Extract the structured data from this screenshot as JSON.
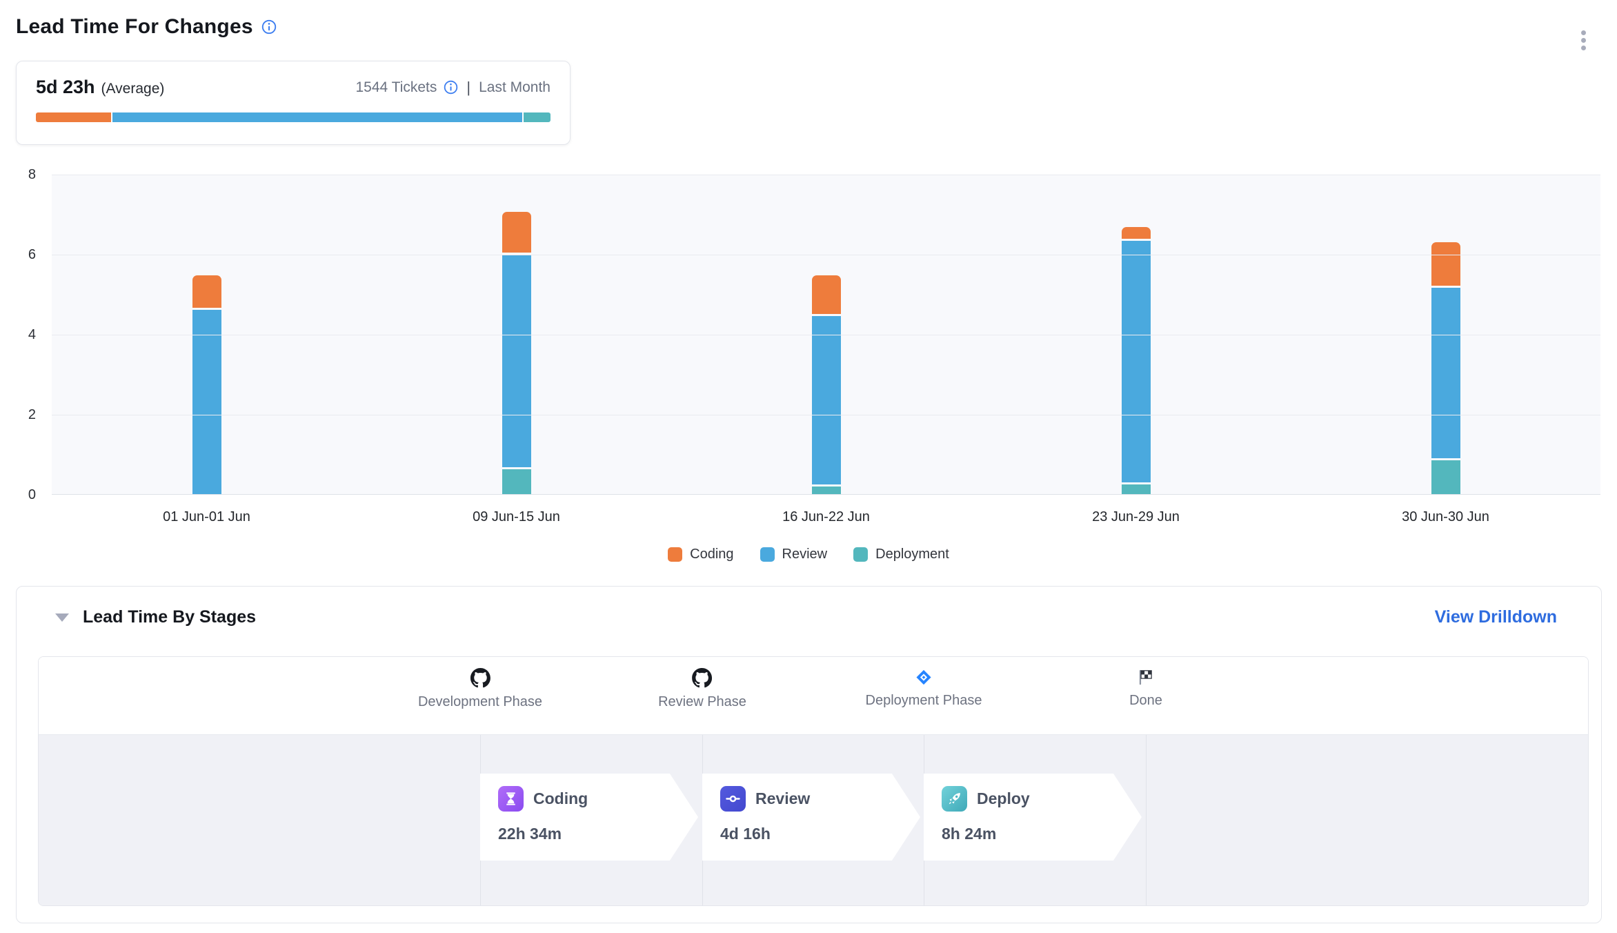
{
  "header": {
    "title": "Lead Time For Changes"
  },
  "summary": {
    "value": "5d 23h",
    "value_suffix": "(Average)",
    "tickets": "1544 Tickets",
    "separator": "|",
    "period": "Last Month",
    "bar_segments": [
      {
        "name": "coding",
        "color": "#EE7C3C",
        "pct": 14.7
      },
      {
        "name": "review",
        "color": "#4AA9DE",
        "pct": 80.1
      },
      {
        "name": "deployment",
        "color": "#53B7BD",
        "pct": 5.2
      }
    ]
  },
  "chart_data": {
    "type": "bar",
    "stacked": true,
    "title": "Lead Time For Changes",
    "categories": [
      "01 Jun-01 Jun",
      "09 Jun-15 Jun",
      "16 Jun-22 Jun",
      "23 Jun-29 Jun",
      "30 Jun-30 Jun"
    ],
    "series": [
      {
        "name": "Coding",
        "color": "#EE7C3C",
        "values": [
          0.85,
          1.05,
          1.0,
          0.33,
          1.12
        ]
      },
      {
        "name": "Review",
        "color": "#4AA9DE",
        "values": [
          4.64,
          5.35,
          4.25,
          6.06,
          4.3
        ]
      },
      {
        "name": "Deployment",
        "color": "#53B7BD",
        "values": [
          0.0,
          0.65,
          0.22,
          0.28,
          0.88
        ]
      }
    ],
    "totals": [
      5.49,
      7.05,
      5.47,
      6.67,
      6.3
    ],
    "xlabel": "",
    "ylabel": "",
    "ylim": [
      0,
      8
    ],
    "yticks": [
      0,
      2,
      4,
      6,
      8
    ],
    "grid": true,
    "legend_position": "bottom"
  },
  "stages_panel": {
    "title": "Lead Time By Stages",
    "drilldown_label": "View Drilldown",
    "phases": [
      {
        "label": "Development Phase",
        "icon": "github"
      },
      {
        "label": "Review Phase",
        "icon": "github"
      },
      {
        "label": "Deployment Phase",
        "icon": "jira"
      },
      {
        "label": "Done",
        "icon": "finish-flag"
      }
    ],
    "stages": [
      {
        "name": "Coding",
        "duration": "22h 34m",
        "icon": "hourglass",
        "icon_color_a": "#b06cf8",
        "icon_color_b": "#8a4bf0"
      },
      {
        "name": "Review",
        "duration": "4d 16h",
        "icon": "commit",
        "icon_color_a": "#545ade",
        "icon_color_b": "#4248cf"
      },
      {
        "name": "Deploy",
        "duration": "8h 24m",
        "icon": "rocket",
        "icon_color_a": "#72d2da",
        "icon_color_b": "#3fa9b8"
      }
    ],
    "colors": {
      "link": "#2E6CDF",
      "body_bg": "#F0F1F6",
      "divider": "#E0E2E9"
    }
  }
}
